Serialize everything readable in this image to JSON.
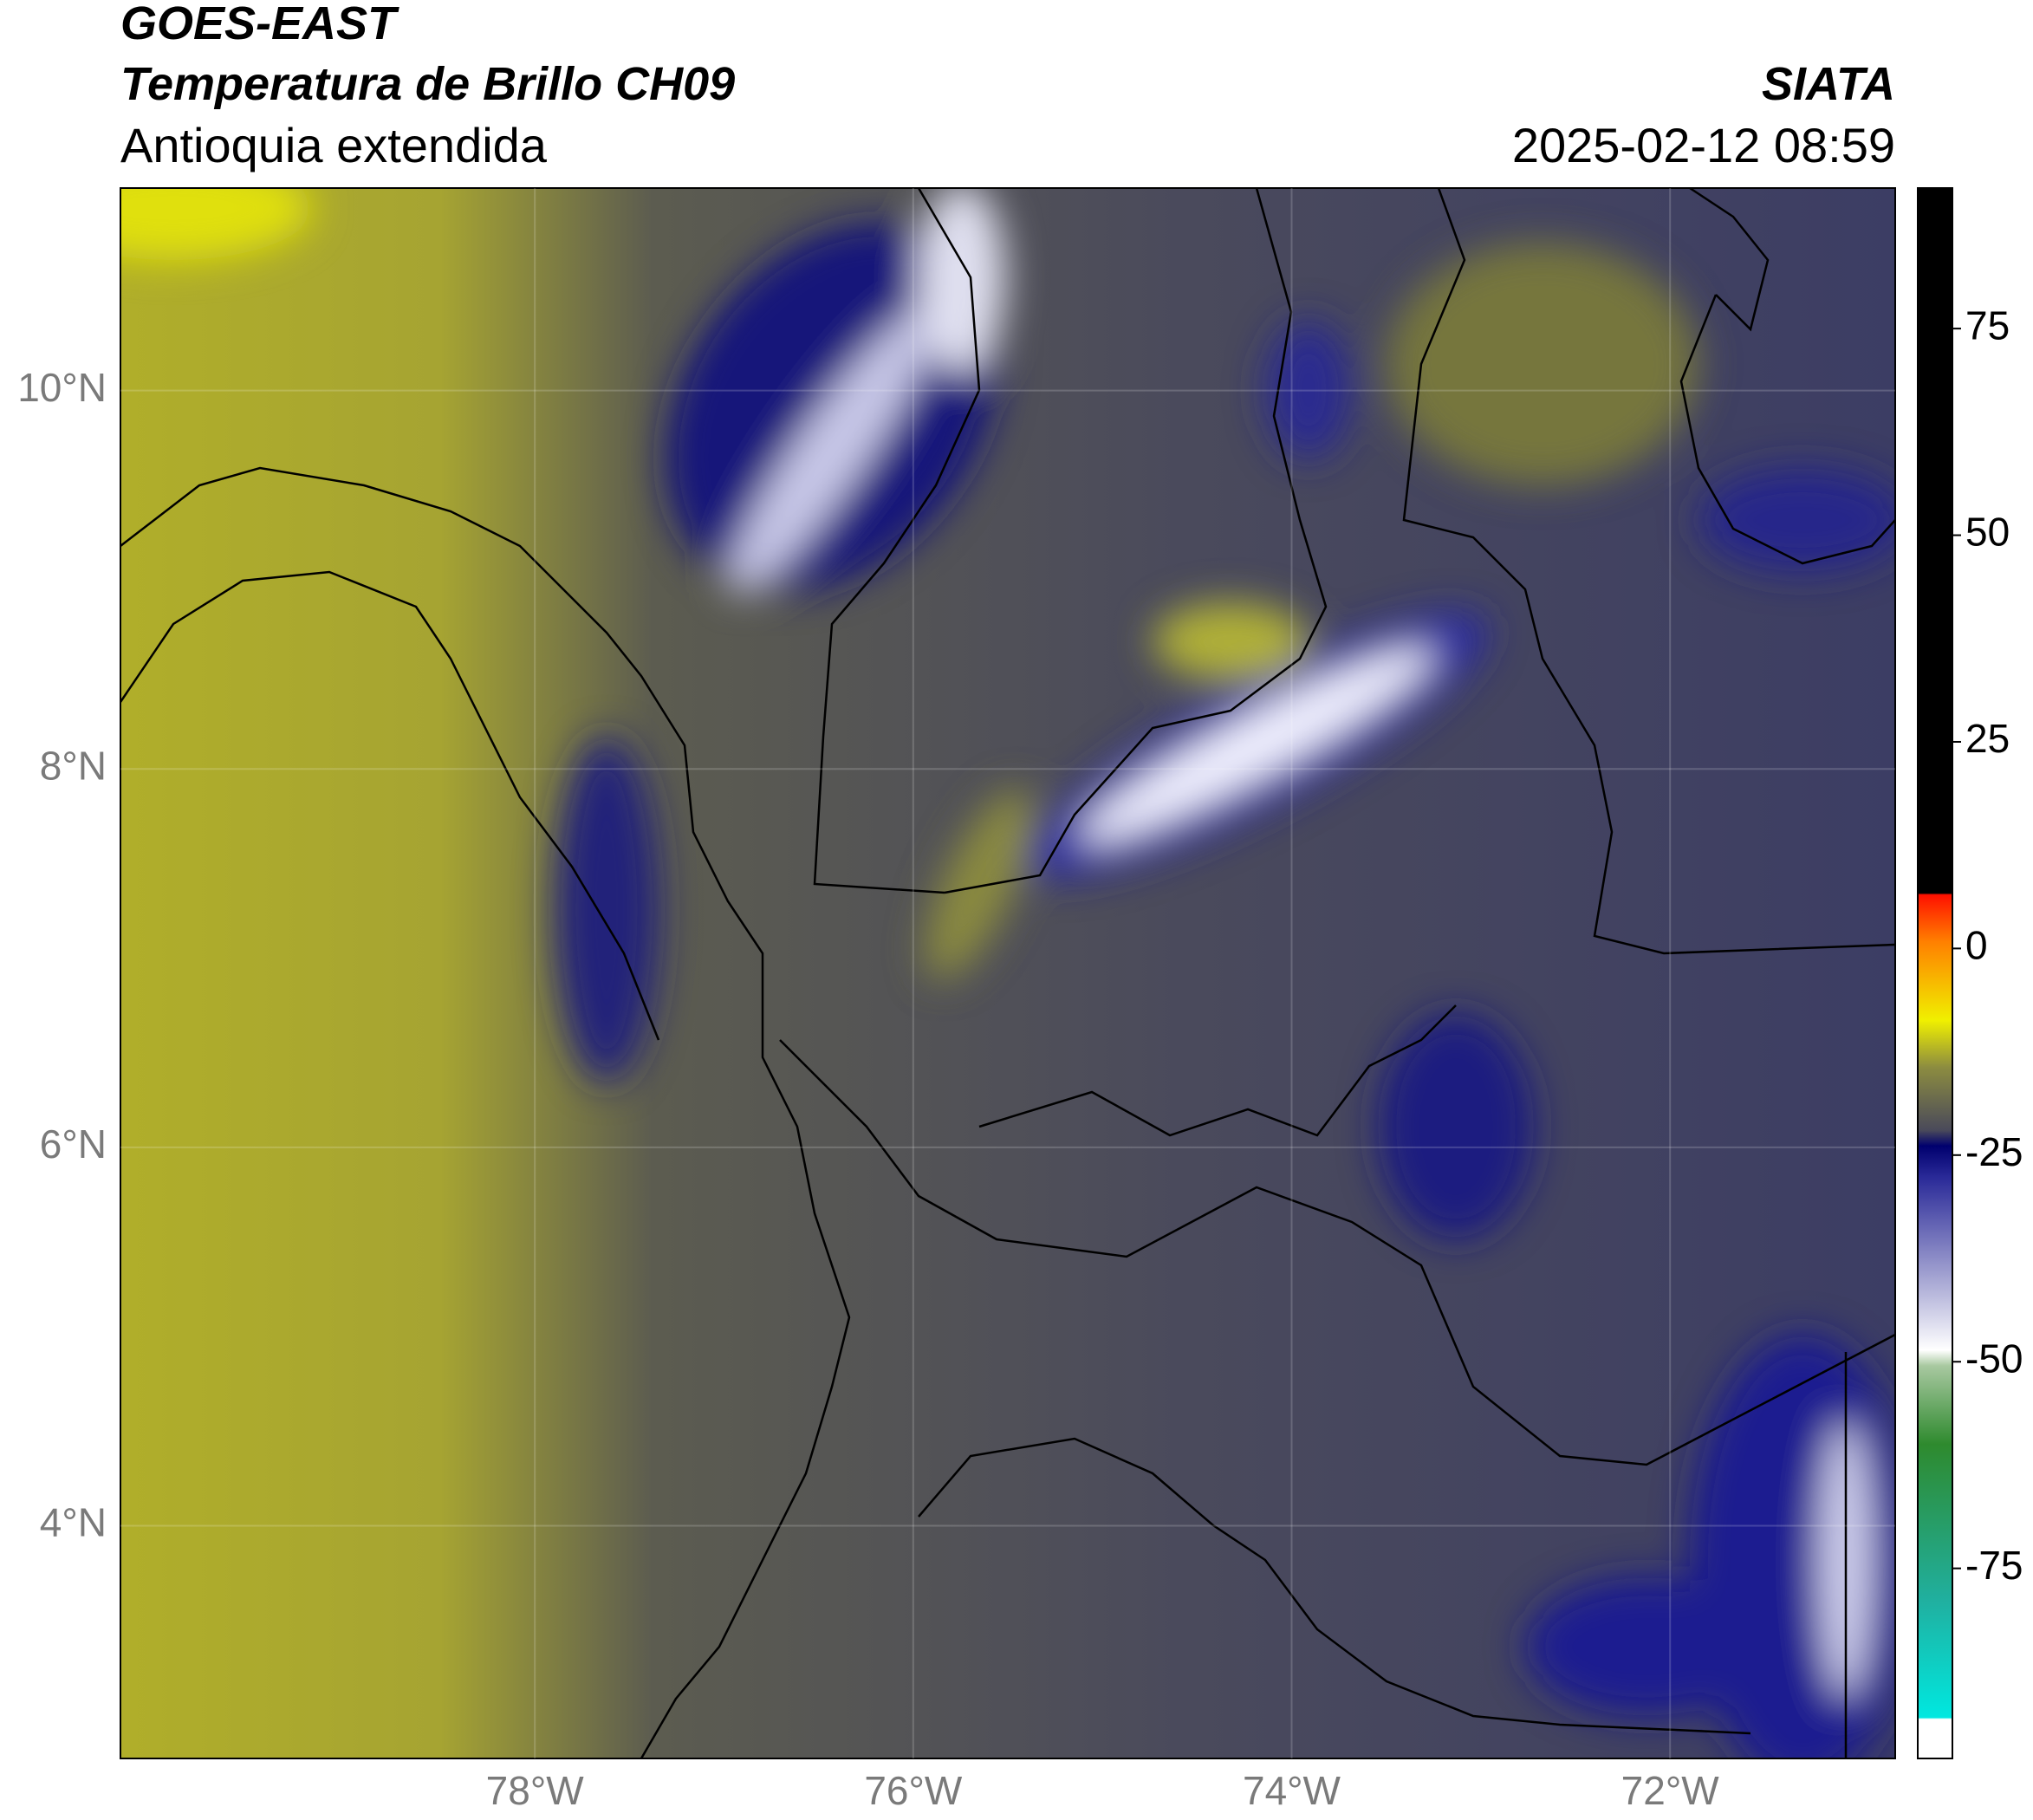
{
  "chart_data": {
    "type": "map",
    "title": "GOES-EAST",
    "subtitle": "Temperatura de Brillo CH09",
    "region": "Antioquia extendida",
    "source": "SIATA",
    "timestamp": "2025-02-12 08:59",
    "xlim": [
      -80.19,
      -70.81
    ],
    "ylim": [
      2.77,
      11.07
    ],
    "xticks": [
      {
        "value": -78,
        "label": "78°W"
      },
      {
        "value": -76,
        "label": "76°W"
      },
      {
        "value": -74,
        "label": "74°W"
      },
      {
        "value": -72,
        "label": "72°W"
      }
    ],
    "yticks": [
      {
        "value": 4,
        "label": "4°N"
      },
      {
        "value": 6,
        "label": "6°N"
      },
      {
        "value": 8,
        "label": "8°N"
      },
      {
        "value": 10,
        "label": "10°N"
      }
    ],
    "grid": true,
    "colorbar": {
      "lim": [
        -98,
        92
      ],
      "ticks": [
        -75,
        -50,
        -25,
        0,
        25,
        50,
        75
      ]
    }
  }
}
